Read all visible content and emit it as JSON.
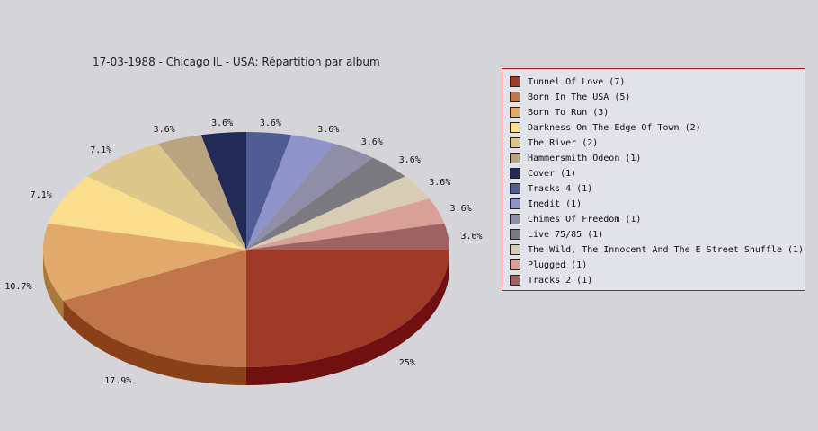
{
  "chart_data": {
    "type": "pie",
    "title": "17-03-1988 - Chicago IL - USA:  Répartition par album",
    "slices": [
      {
        "label": "Tunnel Of Love (7)",
        "value": 7,
        "pct": "25%",
        "color": "#a03a28",
        "side": "#701010"
      },
      {
        "label": "Born In The USA (5)",
        "value": 5,
        "pct": "17.9%",
        "color": "#c0754a",
        "side": "#8a4018"
      },
      {
        "label": "Born To Run (3)",
        "value": 3,
        "pct": "10.7%",
        "color": "#e2aa6a",
        "side": "#a87838"
      },
      {
        "label": "Darkness On The Edge Of Town (2)",
        "value": 2,
        "pct": "7.1%",
        "color": "#fbdd8e",
        "side": "#c0a058"
      },
      {
        "label": "The River (2)",
        "value": 2,
        "pct": "7.1%",
        "color": "#ddc68a",
        "side": "#a89258"
      },
      {
        "label": "Hammersmith Odeon  (1)",
        "value": 1,
        "pct": "3.6%",
        "color": "#b8a47e",
        "side": "#857350"
      },
      {
        "label": "Cover (1)",
        "value": 1,
        "pct": "3.6%",
        "color": "#232a56",
        "side": "#101530"
      },
      {
        "label": "Tracks 4 (1)",
        "value": 1,
        "pct": "3.6%",
        "color": "#525c94",
        "side": "#303868"
      },
      {
        "label": "Inedit (1)",
        "value": 1,
        "pct": "3.6%",
        "color": "#8e93c9",
        "side": "#5e6398"
      },
      {
        "label": "Chimes Of Freedom (1)",
        "value": 1,
        "pct": "3.6%",
        "color": "#8f8ea6",
        "side": "#5e5d76"
      },
      {
        "label": "Live 75/85 (1)",
        "value": 1,
        "pct": "3.6%",
        "color": "#7a7a80",
        "side": "#4e4e54"
      },
      {
        "label": "The Wild, The Innocent And The E Street Shuffle (1)",
        "value": 1,
        "pct": "3.6%",
        "color": "#d8ccb4",
        "side": "#a89c84"
      },
      {
        "label": "Plugged (1)",
        "value": 1,
        "pct": "3.6%",
        "color": "#d8a096",
        "side": "#a87068"
      },
      {
        "label": "Tracks 2 (1)",
        "value": 1,
        "pct": "3.6%",
        "color": "#9e6262",
        "side": "#6e3434"
      }
    ]
  }
}
